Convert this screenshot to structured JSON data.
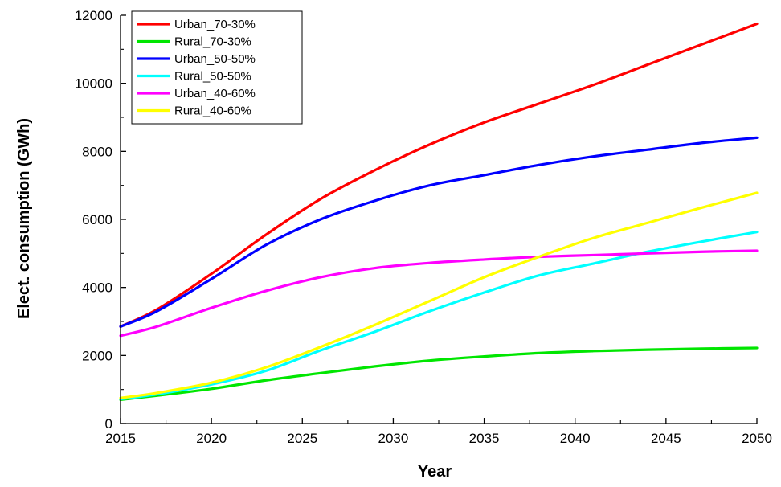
{
  "chart_data": {
    "type": "line",
    "title": "",
    "xlabel": "Year",
    "ylabel": "Elect. consumption (GWh)",
    "xlim": [
      2015,
      2050
    ],
    "ylim": [
      0,
      12000
    ],
    "xticks": [
      2015,
      2020,
      2025,
      2030,
      2035,
      2040,
      2045,
      2050
    ],
    "yticks": [
      0,
      2000,
      4000,
      6000,
      8000,
      10000,
      12000
    ],
    "grid": false,
    "legend_position": "top-left",
    "x": [
      2015,
      2017,
      2020,
      2023,
      2026,
      2029,
      2032,
      2035,
      2038,
      2041,
      2044,
      2047,
      2050
    ],
    "series": [
      {
        "name": "Urban_70-30%",
        "color": "#ff0000",
        "values": [
          2850,
          3350,
          4400,
          5550,
          6600,
          7450,
          8200,
          8850,
          9400,
          9950,
          10550,
          11150,
          11750
        ]
      },
      {
        "name": "Rural_70-30%",
        "color": "#00e600",
        "values": [
          700,
          820,
          1020,
          1270,
          1480,
          1680,
          1850,
          1970,
          2070,
          2130,
          2170,
          2200,
          2220
        ]
      },
      {
        "name": "Urban_50-50%",
        "color": "#0000ff",
        "values": [
          2850,
          3300,
          4250,
          5250,
          6000,
          6550,
          7000,
          7300,
          7600,
          7850,
          8050,
          8250,
          8400
        ]
      },
      {
        "name": "Rural_50-50%",
        "color": "#00ffff",
        "values": [
          720,
          860,
          1150,
          1550,
          2150,
          2700,
          3300,
          3850,
          4350,
          4700,
          5050,
          5350,
          5630
        ]
      },
      {
        "name": "Urban_40-60%",
        "color": "#ff00ff",
        "values": [
          2580,
          2850,
          3400,
          3900,
          4300,
          4570,
          4720,
          4820,
          4900,
          4950,
          5000,
          5050,
          5080
        ]
      },
      {
        "name": "Rural_40-60%",
        "color": "#ffff00",
        "values": [
          750,
          900,
          1200,
          1650,
          2250,
          2900,
          3600,
          4300,
          4900,
          5450,
          5900,
          6350,
          6780
        ]
      }
    ]
  }
}
